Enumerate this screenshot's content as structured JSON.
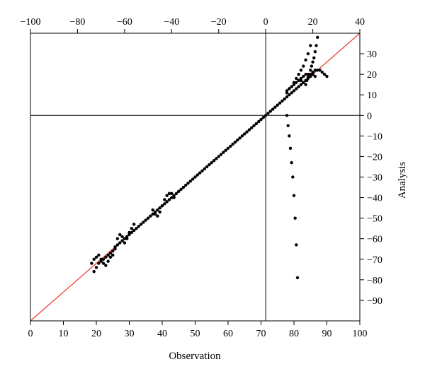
{
  "chart_data": {
    "type": "scatter",
    "title": "",
    "xlabel": "Observation",
    "ylabel": "Analysis",
    "x_bottom": {
      "range": [
        0,
        100
      ],
      "ticks": [
        0,
        10,
        20,
        30,
        40,
        50,
        60,
        70,
        80,
        90,
        100
      ]
    },
    "x_top": {
      "range": [
        -100,
        40
      ],
      "ticks": [
        -100,
        -80,
        -60,
        -40,
        -20,
        0,
        20,
        40
      ]
    },
    "y_right": {
      "range": [
        -100,
        40
      ],
      "ticks": [
        30,
        20,
        10,
        0,
        -10,
        -20,
        -30,
        -40,
        -50,
        -60,
        -70,
        -80,
        -90
      ]
    },
    "reference_lines": {
      "horizontal_at_y": 0,
      "vertical_at_top_x": 0,
      "diagonal_y_equals_x": true
    },
    "grid": false,
    "legend": "none",
    "colors": {
      "points": "#000000",
      "diagonal": "#e8392b",
      "axes": "#000000"
    },
    "series": [
      {
        "points": [
          [
            -73,
            -76
          ],
          [
            -72,
            -74
          ],
          [
            -71,
            -72
          ],
          [
            -70,
            -71
          ],
          [
            -69,
            -70
          ],
          [
            -68,
            -69
          ],
          [
            -67,
            -68
          ],
          [
            -66,
            -67
          ],
          [
            -65,
            -66
          ],
          [
            -64,
            -65
          ],
          [
            -63,
            -63
          ],
          [
            -62,
            -62
          ],
          [
            -61,
            -61
          ],
          [
            -60,
            -60
          ],
          [
            -59,
            -59
          ],
          [
            -58,
            -58
          ],
          [
            -57,
            -57
          ],
          [
            -56,
            -56
          ],
          [
            -55,
            -55
          ],
          [
            -54,
            -54
          ],
          [
            -53,
            -53
          ],
          [
            -52,
            -52
          ],
          [
            -51,
            -51
          ],
          [
            -50,
            -50
          ],
          [
            -49,
            -49
          ],
          [
            -48,
            -48
          ],
          [
            -47,
            -47
          ],
          [
            -46,
            -46
          ],
          [
            -45,
            -45
          ],
          [
            -44,
            -44
          ],
          [
            -43,
            -43
          ],
          [
            -42,
            -42
          ],
          [
            -41,
            -41
          ],
          [
            -40,
            -40
          ],
          [
            -39,
            -39
          ],
          [
            -38,
            -38
          ],
          [
            -37,
            -37
          ],
          [
            -36,
            -36
          ],
          [
            -35,
            -35
          ],
          [
            -34,
            -34
          ],
          [
            -33,
            -33
          ],
          [
            -32,
            -32
          ],
          [
            -31,
            -31
          ],
          [
            -30,
            -30
          ],
          [
            -29,
            -29
          ],
          [
            -28,
            -28
          ],
          [
            -27,
            -27
          ],
          [
            -26,
            -26
          ],
          [
            -25,
            -25
          ],
          [
            -24,
            -24
          ],
          [
            -23,
            -23
          ],
          [
            -22,
            -22
          ],
          [
            -21,
            -21
          ],
          [
            -20,
            -20
          ],
          [
            -19,
            -19
          ],
          [
            -18,
            -18
          ],
          [
            -17,
            -17
          ],
          [
            -16,
            -16
          ],
          [
            -15,
            -15
          ],
          [
            -14,
            -14
          ],
          [
            -13,
            -13
          ],
          [
            -12,
            -12
          ],
          [
            -11,
            -11
          ],
          [
            -10,
            -10
          ],
          [
            -9,
            -9
          ],
          [
            -8,
            -8
          ],
          [
            -7,
            -7
          ],
          [
            -6,
            -6
          ],
          [
            -5,
            -5
          ],
          [
            -4,
            -4
          ],
          [
            -3,
            -3
          ],
          [
            -2,
            -2
          ],
          [
            -1,
            -1
          ],
          [
            0,
            0
          ],
          [
            1,
            1
          ],
          [
            2,
            2
          ],
          [
            3,
            3
          ],
          [
            4,
            4
          ],
          [
            5,
            5
          ],
          [
            6,
            6
          ],
          [
            7,
            7
          ],
          [
            8,
            8
          ],
          [
            9,
            9
          ],
          [
            10,
            10
          ],
          [
            11,
            11
          ],
          [
            12,
            12
          ],
          [
            13,
            13
          ],
          [
            14,
            14
          ],
          [
            15,
            15
          ],
          [
            16,
            16
          ],
          [
            17,
            17
          ],
          [
            18,
            18
          ],
          [
            19,
            19
          ],
          [
            20,
            20
          ],
          [
            -74,
            -72
          ],
          [
            -73,
            -70
          ],
          [
            -72,
            -69
          ],
          [
            -71,
            -68
          ],
          [
            -70,
            -70
          ],
          [
            -69,
            -72
          ],
          [
            -68,
            -73
          ],
          [
            -67,
            -71
          ],
          [
            -66,
            -69
          ],
          [
            -65,
            -68
          ],
          [
            -64,
            -64
          ],
          [
            -63,
            -60
          ],
          [
            -62,
            -58
          ],
          [
            -61,
            -59
          ],
          [
            -60,
            -62
          ],
          [
            -59,
            -60
          ],
          [
            -58,
            -57
          ],
          [
            -57,
            -55
          ],
          [
            -56,
            -53
          ],
          [
            -48,
            -46
          ],
          [
            -47,
            -48
          ],
          [
            -46,
            -49
          ],
          [
            -45,
            -47
          ],
          [
            -44,
            -44
          ],
          [
            -43,
            -41
          ],
          [
            -42,
            -39
          ],
          [
            -41,
            -38
          ],
          [
            -40,
            -38
          ],
          [
            -39,
            -40
          ],
          [
            9,
            11
          ],
          [
            10,
            13
          ],
          [
            11,
            14
          ],
          [
            12,
            16
          ],
          [
            13,
            18
          ],
          [
            14,
            20
          ],
          [
            15,
            22
          ],
          [
            16,
            24
          ],
          [
            17,
            27
          ],
          [
            18,
            30
          ],
          [
            19,
            34
          ],
          [
            20,
            21
          ],
          [
            21,
            22
          ],
          [
            22,
            22
          ],
          [
            23,
            22
          ],
          [
            24,
            21
          ],
          [
            25,
            20
          ],
          [
            26,
            19
          ],
          [
            15,
            17
          ],
          [
            16,
            16
          ],
          [
            17,
            15
          ],
          [
            17.5,
            17
          ],
          [
            18,
            18.5
          ],
          [
            18.5,
            20
          ],
          [
            19,
            22
          ],
          [
            19.5,
            24
          ],
          [
            20,
            26
          ],
          [
            20.5,
            28
          ],
          [
            21,
            31
          ],
          [
            21.5,
            34
          ],
          [
            22,
            38
          ],
          [
            9,
            0
          ],
          [
            9.5,
            -5
          ],
          [
            10,
            -10
          ],
          [
            10.5,
            -16
          ],
          [
            11,
            -23
          ],
          [
            11.5,
            -30
          ],
          [
            12,
            -39
          ],
          [
            12.5,
            -50
          ],
          [
            13,
            -63
          ],
          [
            13.5,
            -79
          ],
          [
            9,
            12
          ],
          [
            10,
            13
          ],
          [
            11,
            14
          ],
          [
            12,
            15
          ],
          [
            13,
            16
          ],
          [
            14,
            17
          ],
          [
            15,
            18
          ],
          [
            16,
            19
          ],
          [
            17,
            20
          ],
          [
            18,
            20
          ],
          [
            19,
            20
          ],
          [
            20,
            20
          ],
          [
            21,
            19
          ]
        ]
      }
    ]
  }
}
